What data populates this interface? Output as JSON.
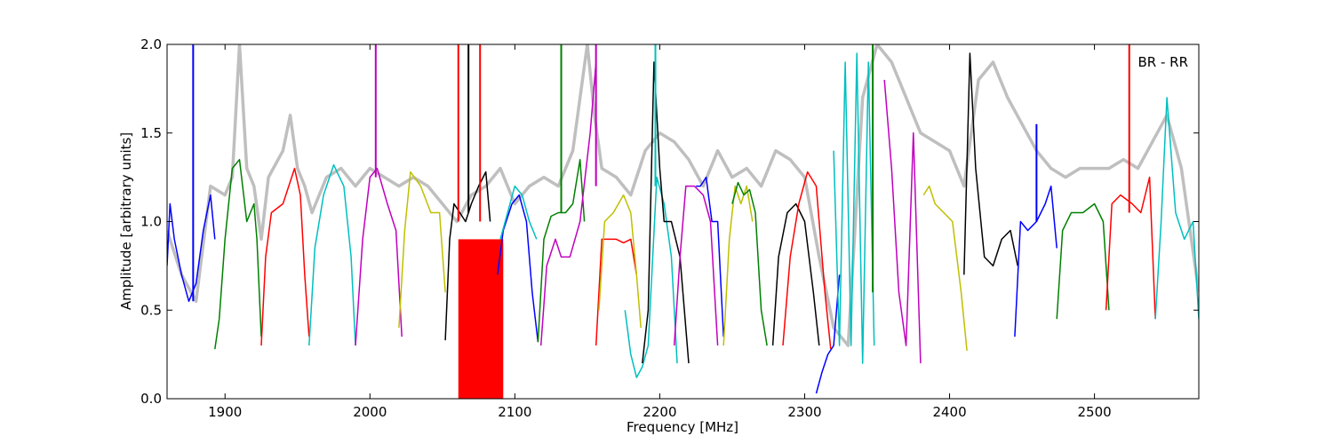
{
  "chart_data": {
    "type": "line",
    "title": "",
    "xlabel": "Frequency [MHz]",
    "ylabel": "Amplitude [arbitrary units]",
    "xlim": [
      1860,
      2572
    ],
    "ylim": [
      0.0,
      2.0
    ],
    "xticks": [
      1900,
      2000,
      2100,
      2200,
      2300,
      2400,
      2500
    ],
    "xtick_labels": [
      "1900",
      "2000",
      "2100",
      "2200",
      "2300",
      "2400",
      "2500"
    ],
    "yticks": [
      0.0,
      0.5,
      1.0,
      1.5,
      2.0
    ],
    "ytick_labels": [
      "0.0",
      "0.5",
      "1.0",
      "1.5",
      "2.0"
    ],
    "grid": false,
    "annotation": "BR - RR",
    "reference": {
      "color": "#bfbfbf",
      "x": [
        1860,
        1870,
        1880,
        1890,
        1900,
        1905,
        1910,
        1915,
        1920,
        1925,
        1930,
        1940,
        1945,
        1950,
        1955,
        1960,
        1970,
        1980,
        1990,
        2000,
        2010,
        2020,
        2030,
        2040,
        2050,
        2060,
        2070,
        2080,
        2090,
        2100,
        2110,
        2120,
        2130,
        2140,
        2150,
        2155,
        2160,
        2170,
        2180,
        2190,
        2200,
        2210,
        2220,
        2230,
        2240,
        2250,
        2260,
        2270,
        2280,
        2290,
        2300,
        2310,
        2320,
        2330,
        2340,
        2350,
        2360,
        2370,
        2380,
        2390,
        2400,
        2410,
        2420,
        2430,
        2440,
        2450,
        2460,
        2470,
        2480,
        2490,
        2500,
        2510,
        2520,
        2530,
        2540,
        2550,
        2560,
        2572
      ],
      "y": [
        0.95,
        0.7,
        0.55,
        1.2,
        1.15,
        1.25,
        2.0,
        1.3,
        1.2,
        0.9,
        1.25,
        1.4,
        1.6,
        1.3,
        1.2,
        1.05,
        1.25,
        1.3,
        1.2,
        1.3,
        1.25,
        1.2,
        1.25,
        1.2,
        1.1,
        1.0,
        1.15,
        1.2,
        1.3,
        1.1,
        1.2,
        1.25,
        1.2,
        1.4,
        2.0,
        1.6,
        1.3,
        1.25,
        1.15,
        1.4,
        1.5,
        1.45,
        1.35,
        1.2,
        1.4,
        1.25,
        1.3,
        1.2,
        1.4,
        1.35,
        1.25,
        0.8,
        0.4,
        0.3,
        1.7,
        2.0,
        1.9,
        1.7,
        1.5,
        1.45,
        1.4,
        1.2,
        1.8,
        1.9,
        1.7,
        1.55,
        1.4,
        1.3,
        1.25,
        1.3,
        1.3,
        1.3,
        1.35,
        1.3,
        1.45,
        1.6,
        1.3,
        0.6
      ]
    },
    "series": [
      {
        "color": "#0000ff",
        "x": [
          1860,
          1862,
          1865,
          1870,
          1875,
          1880,
          1885,
          1890,
          1893
        ],
        "y": [
          0.75,
          1.1,
          0.9,
          0.7,
          0.55,
          0.65,
          0.95,
          1.15,
          0.9
        ]
      },
      {
        "color": "#008000",
        "x": [
          1893,
          1896,
          1900,
          1905,
          1910,
          1915,
          1920,
          1922,
          1925
        ],
        "y": [
          0.28,
          0.45,
          0.9,
          1.3,
          1.35,
          1.0,
          1.1,
          0.9,
          0.35
        ]
      },
      {
        "color": "#ff0000",
        "x": [
          1925,
          1928,
          1932,
          1940,
          1948,
          1952,
          1955,
          1958
        ],
        "y": [
          0.3,
          0.8,
          1.05,
          1.1,
          1.3,
          1.15,
          0.7,
          0.35
        ]
      },
      {
        "color": "#00bfbf",
        "x": [
          1958,
          1962,
          1968,
          1975,
          1982,
          1987,
          1990
        ],
        "y": [
          0.3,
          0.85,
          1.15,
          1.32,
          1.2,
          0.8,
          0.3
        ]
      },
      {
        "color": "#bf00bf",
        "x": [
          1990,
          1995,
          2000,
          2005,
          2012,
          2018,
          2022
        ],
        "y": [
          0.3,
          0.9,
          1.25,
          1.3,
          1.1,
          0.95,
          0.35
        ]
      },
      {
        "color": "#bfbf00",
        "x": [
          2020,
          2024,
          2028,
          2035,
          2042,
          2048,
          2052
        ],
        "y": [
          0.4,
          0.95,
          1.28,
          1.2,
          1.05,
          1.05,
          0.6
        ]
      },
      {
        "color": "#000000",
        "x": [
          2052,
          2055,
          2058,
          2062,
          2066,
          2070,
          2075,
          2080,
          2083
        ],
        "y": [
          0.33,
          0.9,
          1.1,
          1.05,
          1.0,
          1.1,
          1.2,
          1.28,
          1.0
        ]
      },
      {
        "color": "#0000ff",
        "x": [
          2088,
          2092,
          2098,
          2103,
          2108,
          2112,
          2116
        ],
        "y": [
          0.7,
          0.95,
          1.1,
          1.15,
          1.0,
          0.6,
          0.32
        ]
      },
      {
        "color": "#00bfbf",
        "x": [
          2090,
          2095,
          2100,
          2105,
          2110,
          2115
        ],
        "y": [
          0.9,
          1.05,
          1.2,
          1.15,
          1.0,
          0.9
        ]
      },
      {
        "color": "#008000",
        "x": [
          2116,
          2120,
          2125,
          2130,
          2135,
          2140,
          2145,
          2148
        ],
        "y": [
          0.32,
          0.9,
          1.03,
          1.05,
          1.05,
          1.1,
          1.35,
          1.0
        ]
      },
      {
        "color": "#bf00bf",
        "x": [
          2118,
          2122,
          2128,
          2132,
          2138,
          2145,
          2152,
          2156
        ],
        "y": [
          0.3,
          0.75,
          0.9,
          0.8,
          0.8,
          1.0,
          1.5,
          1.9
        ]
      },
      {
        "color": "#ff0000",
        "x": [
          2156,
          2160,
          2165,
          2170,
          2175,
          2180,
          2184
        ],
        "y": [
          0.3,
          0.9,
          0.9,
          0.9,
          0.88,
          0.9,
          0.7
        ]
      },
      {
        "color": "#bfbf00",
        "x": [
          2158,
          2162,
          2168,
          2175,
          2180,
          2184,
          2187
        ],
        "y": [
          0.5,
          1.0,
          1.05,
          1.15,
          1.05,
          0.7,
          0.4
        ]
      },
      {
        "color": "#00bfbf",
        "x": [
          2176,
          2180,
          2184,
          2188,
          2192,
          2198,
          2203,
          2208,
          2212
        ],
        "y": [
          0.5,
          0.25,
          0.12,
          0.18,
          0.3,
          1.25,
          1.1,
          0.8,
          0.2
        ]
      },
      {
        "color": "#000000",
        "x": [
          2188,
          2192,
          2196,
          2200,
          2203,
          2208,
          2214,
          2220
        ],
        "y": [
          0.2,
          0.5,
          1.9,
          1.3,
          1.0,
          1.0,
          0.8,
          0.2
        ]
      },
      {
        "color": "#bf00bf",
        "x": [
          2210,
          2214,
          2218,
          2224,
          2230,
          2235,
          2240
        ],
        "y": [
          0.3,
          0.8,
          1.2,
          1.2,
          1.15,
          1.0,
          0.3
        ]
      },
      {
        "color": "#0000ff",
        "x": [
          2225,
          2228,
          2232,
          2236,
          2240,
          2244
        ],
        "y": [
          1.2,
          1.2,
          1.25,
          1.0,
          1.0,
          0.35
        ]
      },
      {
        "color": "#bfbf00",
        "x": [
          2244,
          2248,
          2252,
          2256,
          2260,
          2264
        ],
        "y": [
          0.3,
          0.9,
          1.2,
          1.1,
          1.2,
          1.0
        ]
      },
      {
        "color": "#008000",
        "x": [
          2250,
          2254,
          2258,
          2262,
          2266,
          2270,
          2274
        ],
        "y": [
          1.1,
          1.22,
          1.15,
          1.18,
          1.05,
          0.5,
          0.3
        ]
      },
      {
        "color": "#000000",
        "x": [
          2278,
          2282,
          2288,
          2294,
          2300,
          2306,
          2310
        ],
        "y": [
          0.3,
          0.8,
          1.05,
          1.1,
          1.0,
          0.6,
          0.3
        ]
      },
      {
        "color": "#ff0000",
        "x": [
          2285,
          2290,
          2296,
          2302,
          2308,
          2314,
          2318
        ],
        "y": [
          0.3,
          0.8,
          1.1,
          1.28,
          1.2,
          0.6,
          0.28
        ]
      },
      {
        "color": "#0000ff",
        "x": [
          2308,
          2312,
          2316,
          2320,
          2324
        ],
        "y": [
          0.03,
          0.15,
          0.25,
          0.3,
          0.7
        ]
      },
      {
        "color": "#00bfbf",
        "x": [
          2320,
          2324,
          2328,
          2332,
          2336,
          2340,
          2344,
          2348
        ],
        "y": [
          1.4,
          0.3,
          1.9,
          0.3,
          1.95,
          0.2,
          1.9,
          0.3
        ]
      },
      {
        "color": "#bf00bf",
        "x": [
          2355,
          2360,
          2365,
          2370,
          2375,
          2380
        ],
        "y": [
          1.8,
          1.3,
          0.6,
          0.3,
          1.5,
          0.2
        ]
      },
      {
        "color": "#bfbf00",
        "x": [
          2382,
          2386,
          2390,
          2396,
          2402,
          2408,
          2412
        ],
        "y": [
          1.15,
          1.2,
          1.1,
          1.05,
          1.0,
          0.6,
          0.27
        ]
      },
      {
        "color": "#000000",
        "x": [
          2410,
          2414,
          2418,
          2424,
          2430,
          2436,
          2442,
          2447
        ],
        "y": [
          0.7,
          1.95,
          1.3,
          0.8,
          0.75,
          0.9,
          0.95,
          0.75
        ]
      },
      {
        "color": "#0000ff",
        "x": [
          2445,
          2449,
          2454,
          2460,
          2466,
          2470,
          2474
        ],
        "y": [
          0.35,
          1.0,
          0.95,
          1.0,
          1.1,
          1.2,
          0.85
        ]
      },
      {
        "color": "#008000",
        "x": [
          2474,
          2478,
          2484,
          2492,
          2500,
          2506,
          2510
        ],
        "y": [
          0.45,
          0.95,
          1.05,
          1.05,
          1.1,
          1.0,
          0.5
        ]
      },
      {
        "color": "#ff0000",
        "x": [
          2508,
          2512,
          2518,
          2526,
          2532,
          2538,
          2542
        ],
        "y": [
          0.5,
          1.1,
          1.15,
          1.1,
          1.05,
          1.25,
          0.45
        ]
      },
      {
        "color": "#00bfbf",
        "x": [
          2542,
          2546,
          2550,
          2556,
          2562,
          2568,
          2572
        ],
        "y": [
          0.45,
          1.0,
          1.7,
          1.05,
          0.9,
          1.0,
          0.45
        ]
      }
    ],
    "spikes": [
      {
        "color": "#0000ff",
        "x": 1878,
        "y0": 0.55,
        "y1": 2.0
      },
      {
        "color": "#bf00bf",
        "x": 2004,
        "y0": 1.25,
        "y1": 2.0
      },
      {
        "color": "#ff0000",
        "x": 2061,
        "y0": 1.0,
        "y1": 2.0
      },
      {
        "color": "#000000",
        "x": 2068,
        "y0": 1.05,
        "y1": 2.0
      },
      {
        "color": "#ff0000",
        "x": 2076,
        "y0": 1.0,
        "y1": 2.0
      },
      {
        "color": "#008000",
        "x": 2132,
        "y0": 1.05,
        "y1": 2.0
      },
      {
        "color": "#bf00bf",
        "x": 2156,
        "y0": 1.2,
        "y1": 2.0
      },
      {
        "color": "#00bfbf",
        "x": 2197,
        "y0": 1.2,
        "y1": 2.0
      },
      {
        "color": "#0000ff",
        "x": 2460,
        "y0": 1.0,
        "y1": 1.55
      },
      {
        "color": "#ff0000",
        "x": 2524,
        "y0": 1.05,
        "y1": 2.0
      },
      {
        "color": "#008000",
        "x": 2347,
        "y0": 0.6,
        "y1": 2.0
      }
    ],
    "fills": [
      {
        "color": "#ff0000",
        "x0": 2061,
        "x1": 2092,
        "y0": 0.0,
        "y1": 0.9
      }
    ]
  }
}
